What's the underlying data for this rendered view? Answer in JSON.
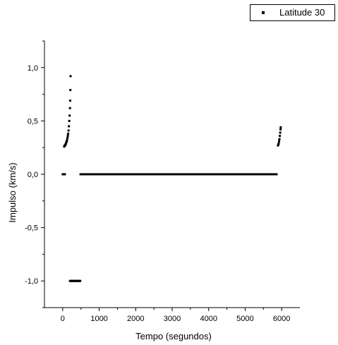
{
  "chart_data": {
    "type": "scatter",
    "xlabel": "Tempo (segundos)",
    "ylabel": "Impulso (km/s)",
    "xlim": [
      -500,
      6500
    ],
    "ylim": [
      -1.25,
      1.25
    ],
    "xticks": [
      0,
      1000,
      2000,
      3000,
      4000,
      5000,
      6000
    ],
    "xtick_labels": [
      "0",
      "1000",
      "2000",
      "3000",
      "4000",
      "5000",
      "6000"
    ],
    "yticks": [
      -1.0,
      -0.5,
      0.0,
      0.5,
      1.0
    ],
    "ytick_labels": [
      "-1,0",
      "-0,5",
      "0,0",
      "0,5",
      "1,0"
    ],
    "legend_position": "top-right",
    "grid": false,
    "series": [
      {
        "name": "Latitude 30",
        "color": "#000000",
        "marker": "square",
        "points": [
          [
            0,
            0.0
          ],
          [
            20,
            0.0
          ],
          [
            40,
            0.0
          ],
          [
            60,
            0.0
          ],
          [
            40,
            0.26
          ],
          [
            50,
            0.265
          ],
          [
            60,
            0.27
          ],
          [
            70,
            0.275
          ],
          [
            80,
            0.28
          ],
          [
            90,
            0.29
          ],
          [
            100,
            0.3
          ],
          [
            110,
            0.31
          ],
          [
            120,
            0.32
          ],
          [
            130,
            0.34
          ],
          [
            140,
            0.36
          ],
          [
            150,
            0.38
          ],
          [
            160,
            0.41
          ],
          [
            170,
            0.45
          ],
          [
            180,
            0.5
          ],
          [
            190,
            0.55
          ],
          [
            200,
            0.62
          ],
          [
            205,
            0.69
          ],
          [
            210,
            0.79
          ],
          [
            215,
            0.92
          ],
          [
            200,
            -1.0
          ],
          [
            220,
            -1.0
          ],
          [
            240,
            -1.0
          ],
          [
            260,
            -1.0
          ],
          [
            280,
            -1.0
          ],
          [
            300,
            -1.0
          ],
          [
            320,
            -1.0
          ],
          [
            340,
            -1.0
          ],
          [
            360,
            -1.0
          ],
          [
            380,
            -1.0
          ],
          [
            400,
            -1.0
          ],
          [
            420,
            -1.0
          ],
          [
            440,
            -1.0
          ],
          [
            460,
            -1.0
          ],
          [
            480,
            -1.0
          ],
          [
            5900,
            0.27
          ],
          [
            5910,
            0.28
          ],
          [
            5920,
            0.29
          ],
          [
            5930,
            0.31
          ],
          [
            5940,
            0.33
          ],
          [
            5950,
            0.36
          ],
          [
            5960,
            0.39
          ],
          [
            5970,
            0.42
          ],
          [
            5975,
            0.44
          ]
        ],
        "segments": [
          {
            "x_start": 460,
            "x_end": 5890,
            "y": 0.0
          }
        ]
      }
    ]
  }
}
